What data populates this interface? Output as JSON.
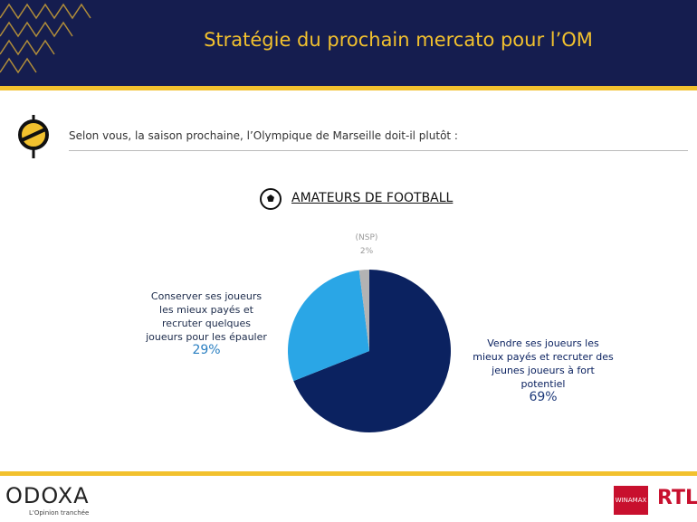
{
  "header": {
    "title": "Stratégie du prochain mercato pour l’OM"
  },
  "question": "Selon vous, la saison prochaine, l’Olympique de Marseille doit-il plutôt :",
  "chart_data": {
    "type": "pie",
    "title": "AMATEURS DE FOOTBALL",
    "categories": [
      "Vendre ses joueurs les mieux payés et recruter des jeunes joueurs à fort potentiel",
      "Conserver ses joueurs les mieux payés et recruter quelques joueurs pour les épauler",
      "(NSP)"
    ],
    "values": [
      69,
      29,
      2
    ],
    "value_labels": [
      "69%",
      "29%",
      "2%"
    ],
    "colors": [
      "#0b2260",
      "#2aa6e6",
      "#b3b3b3"
    ]
  },
  "footer": {
    "logo": "ODOXA",
    "tagline": "L'Opinion tranchée",
    "partners": [
      "WINAMAX",
      "RTL"
    ]
  }
}
